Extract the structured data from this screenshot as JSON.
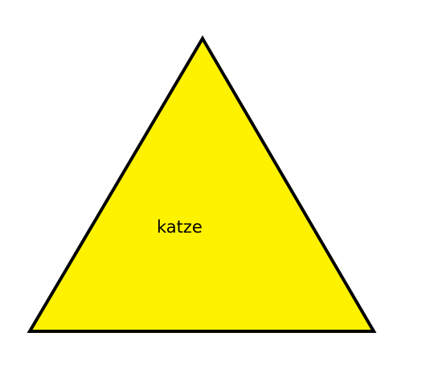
{
  "diagram": {
    "shape": "triangle",
    "label": "katze",
    "fill_color": "#fff200",
    "stroke_color": "#000000",
    "background_color": "#ffffff"
  }
}
